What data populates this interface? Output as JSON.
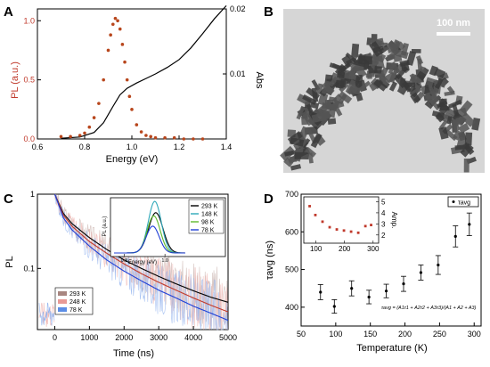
{
  "panels": {
    "a": "A",
    "b": "B",
    "c": "C",
    "d": "D"
  },
  "micrograph": {
    "scale_bar": "100 nm"
  },
  "chart_data": [
    {
      "id": "a",
      "type": "line",
      "xlabel": "Energy (eV)",
      "ylabel": "PL (a.u.)",
      "y2label": "Abs",
      "xlim": [
        0.6,
        1.4
      ],
      "ylim": [
        0,
        1.1
      ],
      "y2lim": [
        0,
        0.02
      ],
      "xticks": [
        "0.6",
        "0.8",
        "1.0",
        "1.2",
        "1.4"
      ],
      "yticks": [
        "0.0",
        "0.5",
        "1.0"
      ],
      "y2ticks": [
        "0.01",
        "0.02"
      ],
      "series": [
        {
          "role": "pl_dots",
          "color": "#b8461c",
          "x": [
            0.7,
            0.74,
            0.78,
            0.8,
            0.82,
            0.84,
            0.86,
            0.88,
            0.9,
            0.91,
            0.92,
            0.93,
            0.94,
            0.95,
            0.96,
            0.97,
            0.98,
            0.99,
            1.0,
            1.02,
            1.04,
            1.06,
            1.08,
            1.1,
            1.14,
            1.18,
            1.22,
            1.26,
            1.3
          ],
          "y": [
            0.02,
            0.02,
            0.03,
            0.05,
            0.1,
            0.18,
            0.3,
            0.5,
            0.75,
            0.88,
            0.97,
            1.02,
            1.0,
            0.93,
            0.8,
            0.65,
            0.5,
            0.36,
            0.25,
            0.12,
            0.06,
            0.03,
            0.02,
            0.01,
            0.01,
            0.01,
            0.0,
            0.0,
            0.0
          ]
        },
        {
          "role": "absorbance",
          "color": "#000000",
          "x": [
            0.7,
            0.78,
            0.84,
            0.88,
            0.92,
            0.95,
            0.98,
            1.02,
            1.06,
            1.1,
            1.15,
            1.2,
            1.25,
            1.3,
            1.35,
            1.4
          ],
          "y": [
            0.0001,
            0.0003,
            0.001,
            0.0025,
            0.005,
            0.0068,
            0.0078,
            0.0086,
            0.0093,
            0.01,
            0.011,
            0.0122,
            0.014,
            0.0162,
            0.0185,
            0.0205
          ]
        }
      ]
    },
    {
      "id": "c",
      "type": "line",
      "xlabel": "Time (ns)",
      "ylabel": "PL",
      "xlim": [
        -500,
        5000
      ],
      "ylim": [
        0.015,
        1
      ],
      "yscale": "log",
      "xticks": [
        "0",
        "1000",
        "2000",
        "3000",
        "4000",
        "5000"
      ],
      "yticks": [
        "0.1",
        "1"
      ],
      "legend": "bottom-left",
      "series": [
        {
          "name": "293 K",
          "color": "#a88680",
          "x": [
            0,
            250,
            500,
            1000,
            1500,
            2000,
            2500,
            3000,
            3500,
            4000,
            4500,
            5000
          ],
          "y": [
            1,
            0.55,
            0.4,
            0.26,
            0.18,
            0.13,
            0.1,
            0.078,
            0.062,
            0.05,
            0.041,
            0.035
          ]
        },
        {
          "name": "248 K",
          "color": "#e89a96",
          "x": [
            0,
            250,
            500,
            1000,
            1500,
            2000,
            2500,
            3000,
            3500,
            4000,
            4500,
            5000
          ],
          "y": [
            1,
            0.52,
            0.37,
            0.23,
            0.16,
            0.115,
            0.085,
            0.065,
            0.051,
            0.04,
            0.032,
            0.026
          ]
        },
        {
          "name": "78 K",
          "color": "#5b8de6",
          "x": [
            0,
            250,
            500,
            1000,
            1500,
            2000,
            2500,
            3000,
            3500,
            4000,
            4500,
            5000
          ],
          "y": [
            1,
            0.48,
            0.33,
            0.2,
            0.13,
            0.092,
            0.068,
            0.051,
            0.04,
            0.031,
            0.025,
            0.02
          ]
        }
      ],
      "inset": {
        "xlabel": "Energy (eV)",
        "ylabel": "PL (a.u.)",
        "xticks": [
          "0.8",
          "1.0"
        ],
        "xlim": [
          0.75,
          1.1
        ],
        "legend": "right",
        "series": [
          {
            "name": "293 K",
            "color": "#000000",
            "center": 0.955,
            "amp": 0.78,
            "width": 0.05
          },
          {
            "name": "148 K",
            "color": "#2ca7b8",
            "center": 0.95,
            "amp": 1.0,
            "width": 0.045
          },
          {
            "name": "98 K",
            "color": "#5fb82c",
            "center": 0.945,
            "amp": 0.72,
            "width": 0.045
          },
          {
            "name": "78 K",
            "color": "#1f3fd6",
            "center": 0.94,
            "amp": 0.52,
            "width": 0.045
          }
        ]
      }
    },
    {
      "id": "d",
      "type": "scatter",
      "xlabel": "Temperature (K)",
      "ylabel": "τavg (ns)",
      "xlim": [
        50,
        310
      ],
      "ylim": [
        350,
        700
      ],
      "xticks": [
        "50",
        "100",
        "150",
        "200",
        "250",
        "300"
      ],
      "yticks": [
        "400",
        "500",
        "600",
        "700"
      ],
      "legend_label": "τavg",
      "formula": "τavg = (A1τ1 + A2τ2 + A3τ3)/(A1 + A2 + A3)",
      "series": [
        {
          "name": "τavg",
          "color": "#000000",
          "x": [
            78,
            98,
            123,
            148,
            173,
            198,
            223,
            248,
            273,
            293
          ],
          "y": [
            440,
            402,
            450,
            427,
            443,
            462,
            492,
            512,
            588,
            620
          ],
          "err": [
            20,
            18,
            20,
            18,
            18,
            20,
            20,
            25,
            28,
            30
          ]
        }
      ],
      "inset": {
        "ylabel": "Amp.",
        "xticks": [
          "100",
          "200",
          "300"
        ],
        "yticks": [
          "2",
          "3",
          "4",
          "5"
        ],
        "xlim": [
          70,
          310
        ],
        "ylim": [
          1.5,
          5.2
        ],
        "color": "#c0392b",
        "x": [
          78,
          98,
          123,
          148,
          173,
          198,
          223,
          248,
          273,
          293
        ],
        "y": [
          4.6,
          3.8,
          3.2,
          2.7,
          2.5,
          2.4,
          2.3,
          2.2,
          2.8,
          2.9
        ]
      }
    }
  ]
}
